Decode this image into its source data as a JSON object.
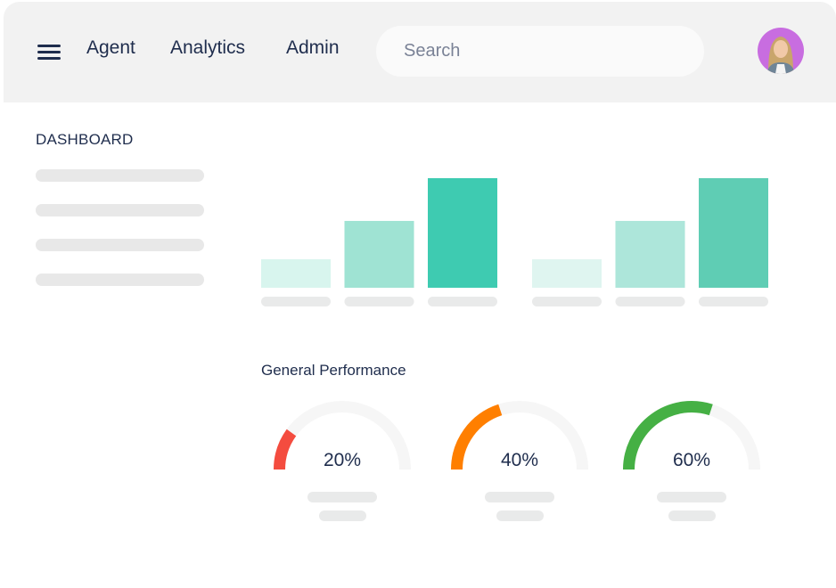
{
  "header": {
    "menu_icon": "hamburger-menu-icon",
    "nav": [
      "Agent",
      "Analytics",
      "Admin"
    ],
    "search": {
      "placeholder": "Search",
      "value": ""
    },
    "avatar": {
      "icon": "user-avatar-photo",
      "background": "#c86de0"
    }
  },
  "sidebar": {
    "title": "DASHBOARD",
    "placeholder_items": 4
  },
  "chart_data": [
    {
      "type": "bar",
      "categories": [
        "",
        "",
        ""
      ],
      "values": [
        26,
        61,
        100
      ],
      "colors": [
        "#d8f5ee",
        "#9fe3d3",
        "#3ecbb1"
      ]
    },
    {
      "type": "bar",
      "categories": [
        "",
        "",
        ""
      ],
      "values": [
        26,
        61,
        100
      ],
      "colors": [
        "#dff5f0",
        "#ade6da",
        "#5fcdb4"
      ]
    }
  ],
  "performance": {
    "title": "General Performance",
    "gauges": [
      {
        "value": 20,
        "label": "20%",
        "color": "#f44c3f"
      },
      {
        "value": 40,
        "label": "40%",
        "color": "#ff7f00"
      },
      {
        "value": 60,
        "label": "60%",
        "color": "#45b044"
      }
    ],
    "track_color": "#f6f6f6"
  }
}
